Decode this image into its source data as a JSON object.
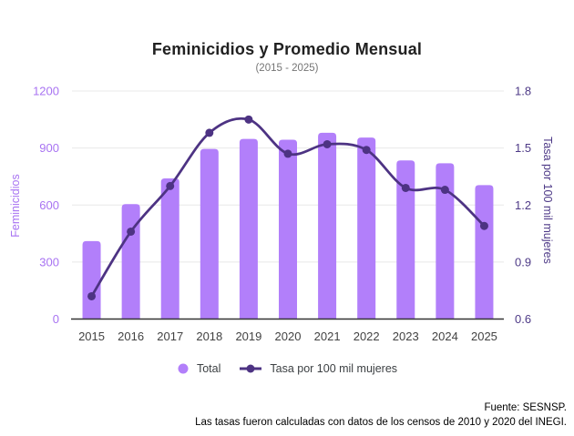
{
  "chart_data": {
    "type": "combo-bar-line",
    "title": "Feminicidios y Promedio Mensual",
    "subtitle": "(2015 - 2025)",
    "categories": [
      "2015",
      "2016",
      "2017",
      "2018",
      "2019",
      "2020",
      "2021",
      "2022",
      "2023",
      "2024",
      "2025"
    ],
    "series": [
      {
        "name": "Total",
        "type": "bar",
        "axis": "left",
        "color": "#b27ffa",
        "values": [
          410,
          605,
          740,
          895,
          948,
          944,
          980,
          955,
          835,
          820,
          705
        ]
      },
      {
        "name": "Tasa por 100 mil mujeres",
        "type": "line",
        "axis": "right",
        "color": "#4d3383",
        "values": [
          0.72,
          1.06,
          1.3,
          1.58,
          1.65,
          1.47,
          1.52,
          1.49,
          1.29,
          1.28,
          1.09
        ]
      }
    ],
    "axes": {
      "left": {
        "label": "Feminicidios",
        "min": 0,
        "max": 1200,
        "ticks": [
          0,
          300,
          600,
          900,
          1200
        ],
        "color": "#a873f2"
      },
      "right": {
        "label": "Tasa por 100 mil mujeres",
        "min": 0.6,
        "max": 1.8,
        "ticks": [
          0.6,
          0.9,
          1.2,
          1.5,
          1.8
        ],
        "color": "#4e3a87"
      }
    },
    "grid": true,
    "legend_position": "bottom",
    "x_label_color": "#424242",
    "gridline_color": "#e8e8e8",
    "baseline_color": "#333333"
  },
  "footer": {
    "source": "Fuente: SESNSP.",
    "note": "Las tasas fueron calculadas con datos de los censos de 2010 y 2020 del INEGI."
  }
}
